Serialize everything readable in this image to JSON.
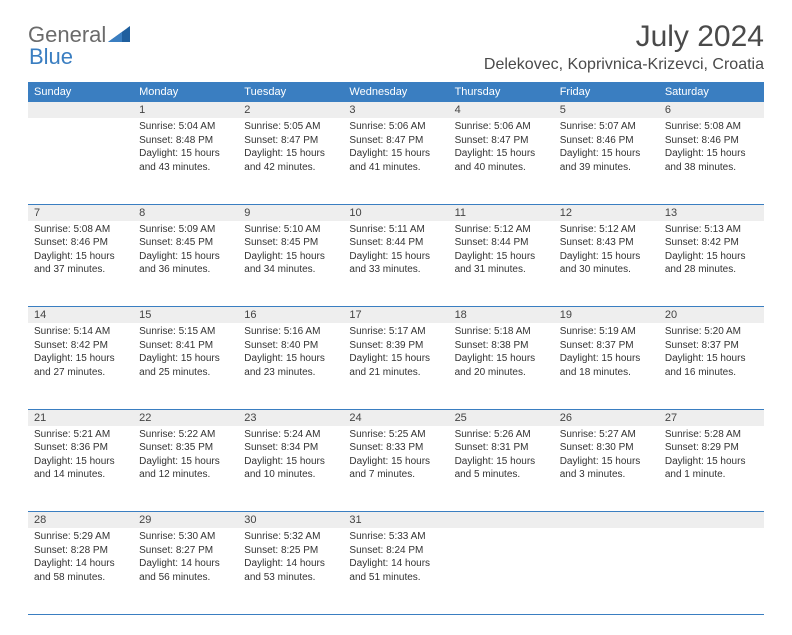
{
  "logo": {
    "general": "General",
    "blue": "Blue"
  },
  "title": "July 2024",
  "location": "Delekovec, Koprivnica-Krizevci, Croatia",
  "colors": {
    "header_bg": "#3a7ec1",
    "header_text": "#ffffff",
    "daynum_bg": "#eeeeee",
    "border": "#3a7ec1",
    "text": "#333333",
    "title_text": "#4a4a4a"
  },
  "weekdays": [
    "Sunday",
    "Monday",
    "Tuesday",
    "Wednesday",
    "Thursday",
    "Friday",
    "Saturday"
  ],
  "weeks": [
    {
      "nums": [
        "",
        "1",
        "2",
        "3",
        "4",
        "5",
        "6"
      ],
      "cells": [
        null,
        {
          "sunrise": "Sunrise: 5:04 AM",
          "sunset": "Sunset: 8:48 PM",
          "day1": "Daylight: 15 hours",
          "day2": "and 43 minutes."
        },
        {
          "sunrise": "Sunrise: 5:05 AM",
          "sunset": "Sunset: 8:47 PM",
          "day1": "Daylight: 15 hours",
          "day2": "and 42 minutes."
        },
        {
          "sunrise": "Sunrise: 5:06 AM",
          "sunset": "Sunset: 8:47 PM",
          "day1": "Daylight: 15 hours",
          "day2": "and 41 minutes."
        },
        {
          "sunrise": "Sunrise: 5:06 AM",
          "sunset": "Sunset: 8:47 PM",
          "day1": "Daylight: 15 hours",
          "day2": "and 40 minutes."
        },
        {
          "sunrise": "Sunrise: 5:07 AM",
          "sunset": "Sunset: 8:46 PM",
          "day1": "Daylight: 15 hours",
          "day2": "and 39 minutes."
        },
        {
          "sunrise": "Sunrise: 5:08 AM",
          "sunset": "Sunset: 8:46 PM",
          "day1": "Daylight: 15 hours",
          "day2": "and 38 minutes."
        }
      ]
    },
    {
      "nums": [
        "7",
        "8",
        "9",
        "10",
        "11",
        "12",
        "13"
      ],
      "cells": [
        {
          "sunrise": "Sunrise: 5:08 AM",
          "sunset": "Sunset: 8:46 PM",
          "day1": "Daylight: 15 hours",
          "day2": "and 37 minutes."
        },
        {
          "sunrise": "Sunrise: 5:09 AM",
          "sunset": "Sunset: 8:45 PM",
          "day1": "Daylight: 15 hours",
          "day2": "and 36 minutes."
        },
        {
          "sunrise": "Sunrise: 5:10 AM",
          "sunset": "Sunset: 8:45 PM",
          "day1": "Daylight: 15 hours",
          "day2": "and 34 minutes."
        },
        {
          "sunrise": "Sunrise: 5:11 AM",
          "sunset": "Sunset: 8:44 PM",
          "day1": "Daylight: 15 hours",
          "day2": "and 33 minutes."
        },
        {
          "sunrise": "Sunrise: 5:12 AM",
          "sunset": "Sunset: 8:44 PM",
          "day1": "Daylight: 15 hours",
          "day2": "and 31 minutes."
        },
        {
          "sunrise": "Sunrise: 5:12 AM",
          "sunset": "Sunset: 8:43 PM",
          "day1": "Daylight: 15 hours",
          "day2": "and 30 minutes."
        },
        {
          "sunrise": "Sunrise: 5:13 AM",
          "sunset": "Sunset: 8:42 PM",
          "day1": "Daylight: 15 hours",
          "day2": "and 28 minutes."
        }
      ]
    },
    {
      "nums": [
        "14",
        "15",
        "16",
        "17",
        "18",
        "19",
        "20"
      ],
      "cells": [
        {
          "sunrise": "Sunrise: 5:14 AM",
          "sunset": "Sunset: 8:42 PM",
          "day1": "Daylight: 15 hours",
          "day2": "and 27 minutes."
        },
        {
          "sunrise": "Sunrise: 5:15 AM",
          "sunset": "Sunset: 8:41 PM",
          "day1": "Daylight: 15 hours",
          "day2": "and 25 minutes."
        },
        {
          "sunrise": "Sunrise: 5:16 AM",
          "sunset": "Sunset: 8:40 PM",
          "day1": "Daylight: 15 hours",
          "day2": "and 23 minutes."
        },
        {
          "sunrise": "Sunrise: 5:17 AM",
          "sunset": "Sunset: 8:39 PM",
          "day1": "Daylight: 15 hours",
          "day2": "and 21 minutes."
        },
        {
          "sunrise": "Sunrise: 5:18 AM",
          "sunset": "Sunset: 8:38 PM",
          "day1": "Daylight: 15 hours",
          "day2": "and 20 minutes."
        },
        {
          "sunrise": "Sunrise: 5:19 AM",
          "sunset": "Sunset: 8:37 PM",
          "day1": "Daylight: 15 hours",
          "day2": "and 18 minutes."
        },
        {
          "sunrise": "Sunrise: 5:20 AM",
          "sunset": "Sunset: 8:37 PM",
          "day1": "Daylight: 15 hours",
          "day2": "and 16 minutes."
        }
      ]
    },
    {
      "nums": [
        "21",
        "22",
        "23",
        "24",
        "25",
        "26",
        "27"
      ],
      "cells": [
        {
          "sunrise": "Sunrise: 5:21 AM",
          "sunset": "Sunset: 8:36 PM",
          "day1": "Daylight: 15 hours",
          "day2": "and 14 minutes."
        },
        {
          "sunrise": "Sunrise: 5:22 AM",
          "sunset": "Sunset: 8:35 PM",
          "day1": "Daylight: 15 hours",
          "day2": "and 12 minutes."
        },
        {
          "sunrise": "Sunrise: 5:24 AM",
          "sunset": "Sunset: 8:34 PM",
          "day1": "Daylight: 15 hours",
          "day2": "and 10 minutes."
        },
        {
          "sunrise": "Sunrise: 5:25 AM",
          "sunset": "Sunset: 8:33 PM",
          "day1": "Daylight: 15 hours",
          "day2": "and 7 minutes."
        },
        {
          "sunrise": "Sunrise: 5:26 AM",
          "sunset": "Sunset: 8:31 PM",
          "day1": "Daylight: 15 hours",
          "day2": "and 5 minutes."
        },
        {
          "sunrise": "Sunrise: 5:27 AM",
          "sunset": "Sunset: 8:30 PM",
          "day1": "Daylight: 15 hours",
          "day2": "and 3 minutes."
        },
        {
          "sunrise": "Sunrise: 5:28 AM",
          "sunset": "Sunset: 8:29 PM",
          "day1": "Daylight: 15 hours",
          "day2": "and 1 minute."
        }
      ]
    },
    {
      "nums": [
        "28",
        "29",
        "30",
        "31",
        "",
        "",
        ""
      ],
      "cells": [
        {
          "sunrise": "Sunrise: 5:29 AM",
          "sunset": "Sunset: 8:28 PM",
          "day1": "Daylight: 14 hours",
          "day2": "and 58 minutes."
        },
        {
          "sunrise": "Sunrise: 5:30 AM",
          "sunset": "Sunset: 8:27 PM",
          "day1": "Daylight: 14 hours",
          "day2": "and 56 minutes."
        },
        {
          "sunrise": "Sunrise: 5:32 AM",
          "sunset": "Sunset: 8:25 PM",
          "day1": "Daylight: 14 hours",
          "day2": "and 53 minutes."
        },
        {
          "sunrise": "Sunrise: 5:33 AM",
          "sunset": "Sunset: 8:24 PM",
          "day1": "Daylight: 14 hours",
          "day2": "and 51 minutes."
        },
        null,
        null,
        null
      ]
    }
  ]
}
